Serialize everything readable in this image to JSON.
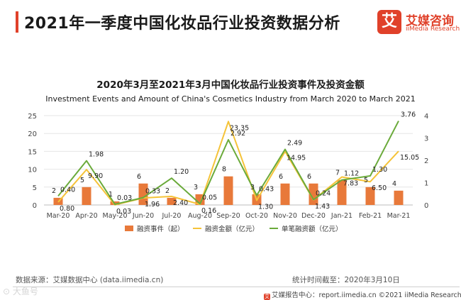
{
  "header": {
    "title": "2021年一季度中国化妆品行业投资数据分析",
    "logo_mark": "艾",
    "logo_cn": "艾媒咨询",
    "logo_en": "iiMedia Research"
  },
  "chart_data": {
    "type": "bar",
    "title": "2020年3月至2021年3月中国化妆品行业投资事件及投资金额",
    "subtitle": "Investment Events and Amount of China's Cosmetics Industry from March 2020 to March 2021",
    "categories": [
      "Mar-20",
      "Apr-20",
      "May-20",
      "Jun-20",
      "Jul-20",
      "Aug-20",
      "Sep-20",
      "Oct-20",
      "Nov-20",
      "Dec-20",
      "Jan-21",
      "Feb-21",
      "Mar-21"
    ],
    "series": [
      {
        "name": "融资事件（起）",
        "type": "bar",
        "axis": "left",
        "color": "#e8793a",
        "values": [
          2,
          5,
          1,
          6,
          2,
          3,
          8,
          3,
          6,
          6,
          7,
          5,
          4
        ]
      },
      {
        "name": "融资金额（亿元）",
        "type": "line",
        "axis": "left",
        "color": "#f5c338",
        "values": [
          0.8,
          9.9,
          0.03,
          1.96,
          2.4,
          0.16,
          23.35,
          1.3,
          14.95,
          1.43,
          7.83,
          6.5,
          15.05
        ],
        "labels": [
          "0.80",
          "9.90",
          "0.03",
          "1.96",
          "2.40",
          "0.16",
          "23.35",
          "1.30",
          "14.95",
          "1.43",
          "7.83",
          "6.50",
          "15.05"
        ]
      },
      {
        "name": "单笔融资额（亿元）",
        "type": "line",
        "axis": "right",
        "color": "#6aaa3a",
        "values": [
          0.4,
          1.98,
          0.03,
          0.33,
          1.2,
          0.05,
          2.92,
          0.43,
          2.49,
          0.24,
          1.12,
          1.3,
          3.76
        ],
        "labels": [
          "0.40",
          "1.98",
          "0.03",
          "0.33",
          "1.20",
          "0.05",
          "2.92",
          "0.43",
          "2.49",
          "0.24",
          "1.12",
          "1.30",
          "3.76"
        ]
      }
    ],
    "y_left": {
      "range": [
        0,
        25
      ],
      "ticks": [
        "0",
        "5",
        "10",
        "15",
        "20",
        "25"
      ]
    },
    "y_right": {
      "range": [
        0,
        4
      ],
      "ticks": [
        "0",
        "1",
        "2",
        "3",
        "4"
      ]
    },
    "grid": true,
    "legend_position": "bottom"
  },
  "footer": {
    "source": "数据来源：艾媒数据中心   (data.iimedia.cn)",
    "date_note": "统计时间截至：2020年3月10日",
    "watermark": "⊙ 大鱼号",
    "report": "艾媒报告中心：report.iimedia.cn  ©2021  iiMedia Research  Inc",
    "report_icon": "艾"
  }
}
